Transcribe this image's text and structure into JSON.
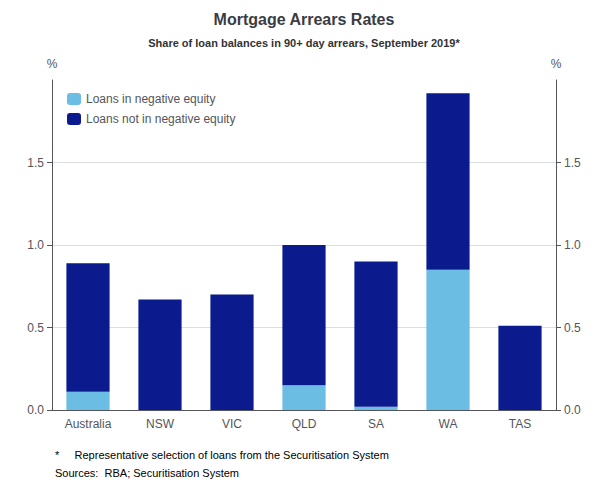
{
  "chart_data": {
    "type": "bar",
    "title": "Mortgage Arrears Rates",
    "subtitle": "Share of loan balances in 90+ day arrears, September 2019*",
    "categories": [
      "Australia",
      "NSW",
      "VIC",
      "QLD",
      "SA",
      "WA",
      "TAS"
    ],
    "series": [
      {
        "name": "Loans in negative equity",
        "color": "#6BBDE3",
        "values": [
          0.11,
          0.0,
          0.0,
          0.15,
          0.02,
          0.85,
          0.0
        ]
      },
      {
        "name": "Loans not in negative equity",
        "color": "#0B1B8E",
        "values": [
          0.78,
          0.67,
          0.7,
          0.85,
          0.88,
          1.07,
          0.51
        ]
      }
    ],
    "stacked": true,
    "ylabel": "%",
    "y2label": "%",
    "ylim": [
      0,
      2.0
    ],
    "yticks": [
      {
        "value": 0,
        "label": "0.0"
      },
      0.5,
      {
        "value": 1,
        "label": "1.0"
      },
      1.5
    ],
    "y2lim": [
      0,
      2.0
    ],
    "y2ticks": [
      {
        "value": 0,
        "label": "0.0"
      },
      0.5,
      {
        "value": 1,
        "label": "1.0"
      },
      1.5
    ],
    "grid": true,
    "legend": "upper left",
    "annotations": [
      "*     Representative selection of loans from the Securitisation System",
      "Sources:  RBA; Securitisation System"
    ]
  }
}
